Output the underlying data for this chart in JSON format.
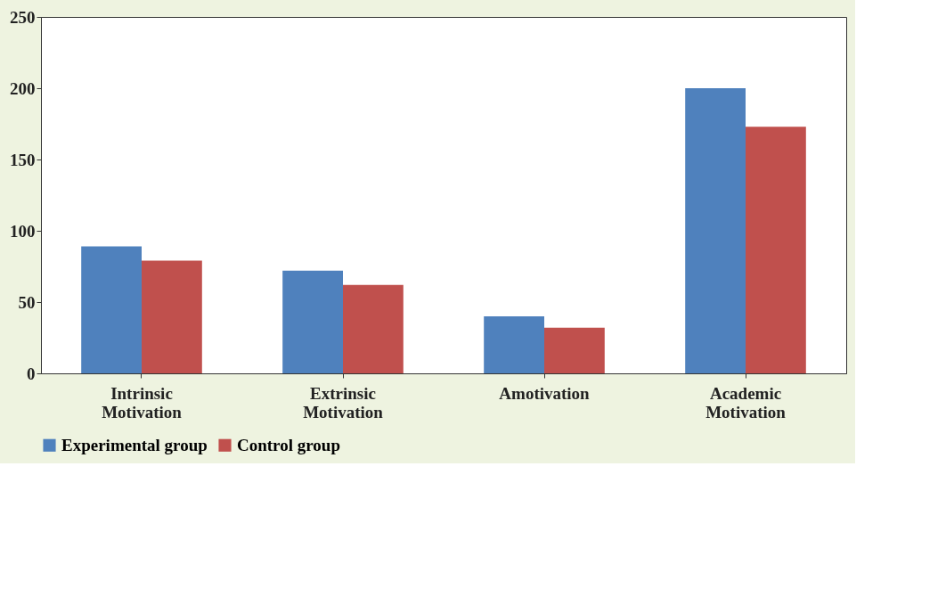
{
  "chart_data": {
    "type": "bar",
    "categories": [
      "Intrinsic Motivation",
      "Extrinsic Motivation",
      "Amotivation",
      "Academic Motivation"
    ],
    "series": [
      {
        "name": "Experimental group",
        "color": "#4f81bd",
        "values": [
          89,
          72,
          40,
          200
        ]
      },
      {
        "name": "Control group",
        "color": "#c0504d",
        "values": [
          79,
          62,
          32,
          173
        ]
      }
    ],
    "ylim": [
      0,
      250
    ],
    "yticks": [
      0,
      50,
      100,
      150,
      200,
      250
    ],
    "grid": false,
    "legend": "bottom"
  }
}
